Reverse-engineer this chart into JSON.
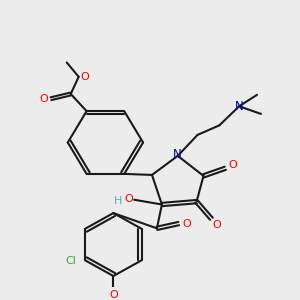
{
  "bg_color": "#ececec",
  "bond_color": "#1a1a1a",
  "bond_width": 1.5,
  "atom_colors": {
    "O": "#ff0000",
    "N": "#0000cc",
    "Cl": "#33aa33",
    "H": "#66aaaa",
    "C": "#1a1a1a"
  },
  "fig_size": [
    3.0,
    3.0
  ],
  "dpi": 100
}
